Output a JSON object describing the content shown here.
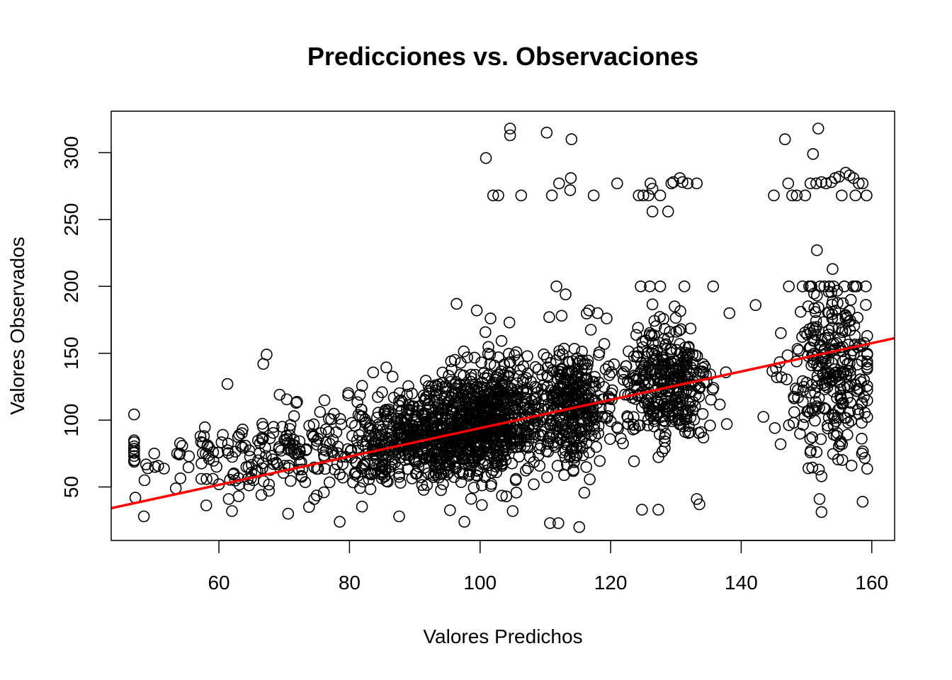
{
  "chart_data": {
    "type": "scatter",
    "title": "Predicciones vs. Observaciones",
    "xlabel": "Valores Predichos",
    "ylabel": "Valores Observados",
    "xlim": [
      43.5,
      163.5
    ],
    "ylim": [
      10,
      331
    ],
    "x_ticks": [
      60,
      80,
      100,
      120,
      140,
      160
    ],
    "y_ticks": [
      50,
      100,
      150,
      200,
      250,
      300
    ],
    "grid": false,
    "legend": "none",
    "point_style": "open-circle",
    "point_color": "#000000",
    "clusters": [
      {
        "x_center": 72,
        "x_spread": 12,
        "y_center": 75,
        "y_spread": 15,
        "count": 240
      },
      {
        "x_center": 89,
        "x_spread": 5,
        "y_center": 88,
        "y_spread": 17,
        "count": 320
      },
      {
        "x_center": 96,
        "x_spread": 3,
        "y_center": 95,
        "y_spread": 19,
        "count": 260
      },
      {
        "x_center": 102,
        "x_spread": 3.5,
        "y_center": 100,
        "y_spread": 21,
        "count": 520
      },
      {
        "x_center": 114,
        "x_spread": 3.5,
        "y_center": 110,
        "y_spread": 21,
        "count": 360
      },
      {
        "x_center": 128.5,
        "x_spread": 3.5,
        "y_center": 125,
        "y_spread": 24,
        "count": 330
      },
      {
        "x_center": 154,
        "x_spread": 3.5,
        "y_center": 135,
        "y_spread": 32,
        "count": 280
      }
    ],
    "outliers": [
      [
        104.6,
        318
      ],
      [
        104.6,
        313
      ],
      [
        110.2,
        315
      ],
      [
        114,
        310
      ],
      [
        100.9,
        296
      ],
      [
        102,
        268
      ],
      [
        102.8,
        268
      ],
      [
        106.3,
        268
      ],
      [
        111,
        268
      ],
      [
        117.4,
        268
      ],
      [
        112.1,
        277
      ],
      [
        113.9,
        281
      ],
      [
        113.8,
        272
      ],
      [
        121,
        277
      ],
      [
        124.3,
        268
      ],
      [
        125,
        268
      ],
      [
        125.8,
        268
      ],
      [
        126.1,
        277
      ],
      [
        126.4,
        273
      ],
      [
        126.4,
        256
      ],
      [
        127.6,
        268
      ],
      [
        128.8,
        256
      ],
      [
        129.3,
        277
      ],
      [
        129.6,
        278
      ],
      [
        130.6,
        281
      ],
      [
        131,
        278
      ],
      [
        131.8,
        277
      ],
      [
        133.2,
        277
      ],
      [
        145,
        268
      ],
      [
        146.7,
        310
      ],
      [
        147.2,
        277
      ],
      [
        147.8,
        268
      ],
      [
        148.5,
        268
      ],
      [
        149.8,
        268
      ],
      [
        150.6,
        277
      ],
      [
        151,
        299
      ],
      [
        151.8,
        318
      ],
      [
        151.5,
        277
      ],
      [
        152.3,
        278
      ],
      [
        153,
        277
      ],
      [
        153.8,
        278
      ],
      [
        154.4,
        281
      ],
      [
        155,
        282
      ],
      [
        155.4,
        268
      ],
      [
        156,
        285
      ],
      [
        156.6,
        283
      ],
      [
        157.2,
        281
      ],
      [
        157.5,
        268
      ],
      [
        158,
        277
      ],
      [
        158.6,
        277
      ],
      [
        159.2,
        268
      ],
      [
        151.6,
        227
      ],
      [
        154,
        213
      ],
      [
        152,
        41
      ],
      [
        158.6,
        39
      ],
      [
        115.2,
        20
      ],
      [
        110.7,
        23
      ],
      [
        112,
        23
      ],
      [
        105,
        32
      ],
      [
        97.6,
        24
      ],
      [
        67.3,
        149
      ],
      [
        66.8,
        142
      ],
      [
        61.3,
        127
      ],
      [
        69.3,
        119
      ],
      [
        48.5,
        28
      ],
      [
        70.6,
        30
      ],
      [
        62,
        32
      ],
      [
        74.6,
        41
      ],
      [
        78.5,
        24
      ],
      [
        87.6,
        28
      ],
      [
        124.8,
        33
      ],
      [
        127.3,
        33
      ],
      [
        133.2,
        41
      ],
      [
        133.6,
        37
      ],
      [
        104.5,
        173
      ],
      [
        110.6,
        177
      ],
      [
        112.5,
        178
      ],
      [
        116.7,
        182
      ],
      [
        118,
        180
      ],
      [
        119.4,
        176
      ],
      [
        96.4,
        187
      ],
      [
        99.5,
        182
      ],
      [
        101.6,
        176
      ],
      [
        113.1,
        194
      ],
      [
        111.7,
        200
      ],
      [
        124.6,
        200
      ],
      [
        126,
        200
      ],
      [
        127.6,
        200
      ],
      [
        129.8,
        185
      ],
      [
        131.3,
        200
      ],
      [
        135.7,
        200
      ],
      [
        138.2,
        180
      ],
      [
        142.2,
        186
      ],
      [
        147.3,
        200
      ],
      [
        150.4,
        200
      ],
      [
        152.1,
        200
      ],
      [
        153.5,
        200
      ],
      [
        155.8,
        200
      ],
      [
        157.7,
        200
      ],
      [
        159.1,
        200
      ],
      [
        149.1,
        181
      ],
      [
        156.8,
        190
      ],
      [
        151.9,
        63
      ],
      [
        156.9,
        66
      ],
      [
        152.3,
        58
      ],
      [
        150.3,
        64
      ],
      [
        158.5,
        75
      ],
      [
        47.1,
        70
      ],
      [
        47.2,
        42
      ],
      [
        48.6,
        55
      ],
      [
        49.1,
        64
      ],
      [
        50.2,
        65
      ],
      [
        50.1,
        75
      ],
      [
        53.4,
        49
      ],
      [
        53.6,
        75
      ],
      [
        55.4,
        73
      ],
      [
        57.7,
        88
      ],
      [
        58.1,
        56
      ],
      [
        60,
        52
      ],
      [
        60.6,
        89
      ],
      [
        61.5,
        41
      ],
      [
        64.4,
        56
      ],
      [
        65.3,
        55
      ],
      [
        66.5,
        44
      ],
      [
        69.7,
        95
      ],
      [
        71.5,
        103
      ],
      [
        73.8,
        35
      ]
    ],
    "fit_line": {
      "color": "#ff0000",
      "intercept": -11.97,
      "slope": 1.0595,
      "x_range": [
        43.5,
        163.5
      ]
    }
  }
}
